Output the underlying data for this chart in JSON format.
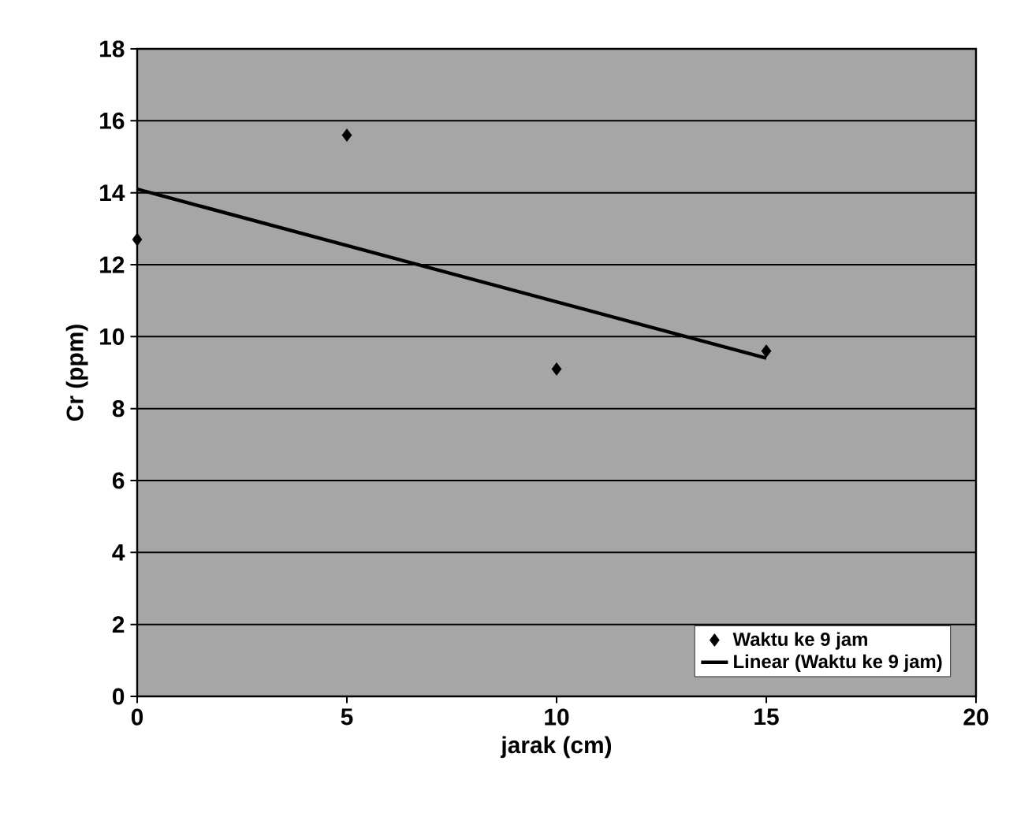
{
  "chart_data": {
    "type": "scatter",
    "xlabel": "jarak (cm)",
    "ylabel": "Cr (ppm)",
    "xlim": [
      0,
      20
    ],
    "xticks": [
      0,
      5,
      10,
      15,
      20
    ],
    "ylim": [
      0,
      18
    ],
    "yticks": [
      0,
      2,
      4,
      6,
      8,
      10,
      12,
      14,
      16,
      18
    ],
    "grid": "y",
    "legend": "bottom right",
    "marker": "diamond",
    "series": [
      {
        "name": "Waktu ke 9 jam",
        "color": "#000000",
        "x": [
          0,
          5,
          10,
          15
        ],
        "values": [
          12.7,
          15.6,
          9.1,
          9.6
        ]
      },
      {
        "name": "Linear (Waktu ke 9 jam)",
        "type": "line",
        "color": "#000000",
        "x": [
          0,
          15
        ],
        "values": [
          14.1,
          9.4
        ],
        "marker": "none"
      }
    ]
  }
}
